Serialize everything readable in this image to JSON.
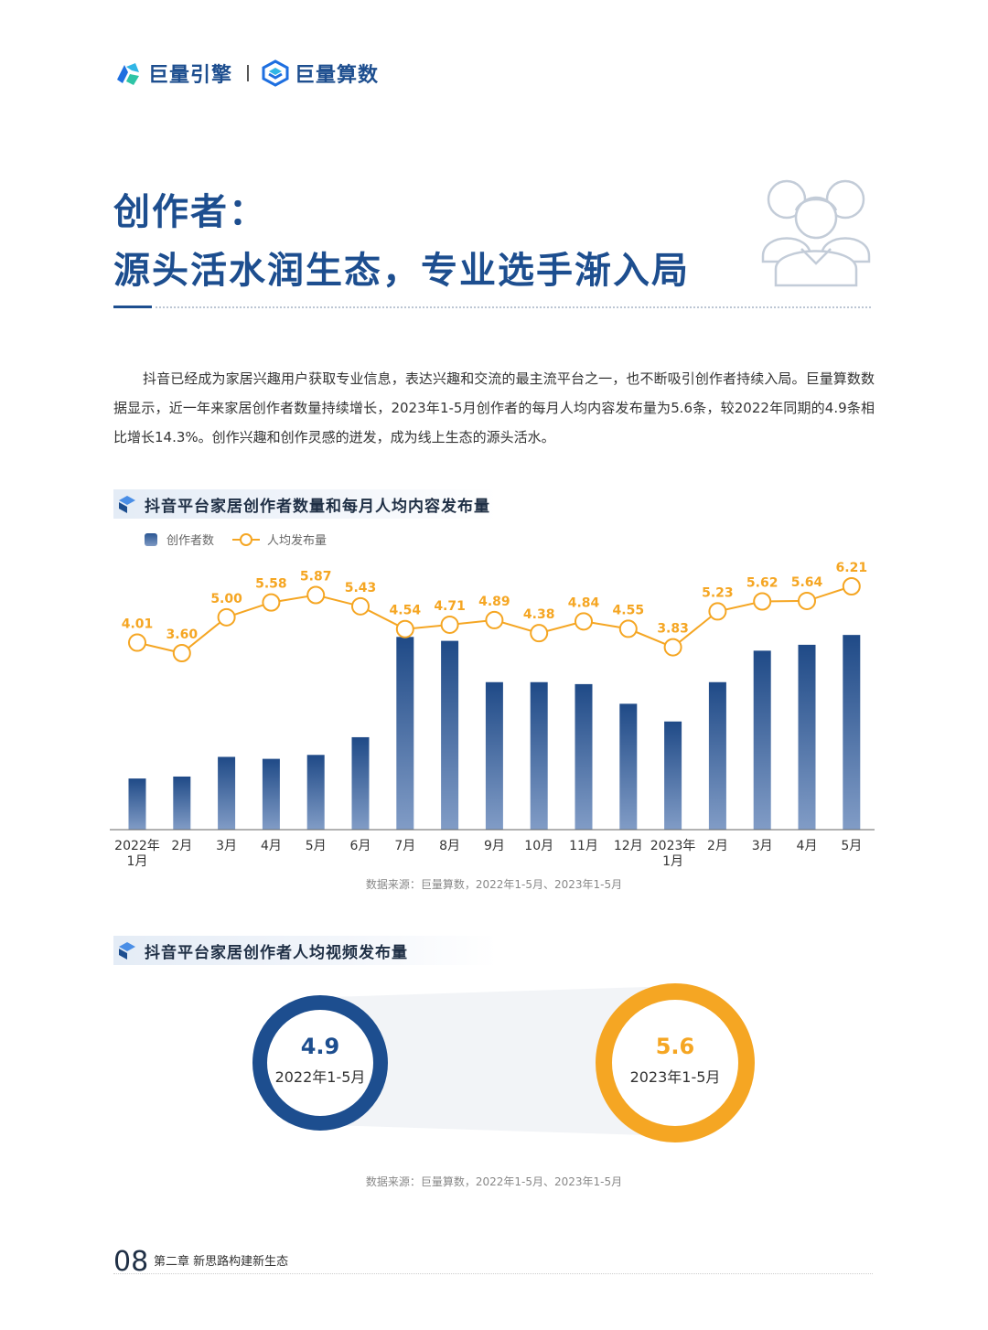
{
  "header": {
    "brand1": "巨量引擎",
    "brand2": "巨量算数"
  },
  "title": {
    "line1": "创作者：",
    "line2": "源头活水润生态，专业选手渐入局"
  },
  "intro": "抖音已经成为家居兴趣用户获取专业信息，表达兴趣和交流的最主流平台之一，也不断吸引创作者持续入局。巨量算数数据显示，近一年来家居创作者数量持续增长，2023年1-5月创作者的每月人均内容发布量为5.6条，较2022年同期的4.9条相比增长14.3%。创作兴趣和创作灵感的迸发，成为线上生态的源头活水。",
  "section1": {
    "title": "抖音平台家居创作者数量和每月人均内容发布量"
  },
  "section2": {
    "title": "抖音平台家居创作者人均视频发布量"
  },
  "chart_data": [
    {
      "type": "bar+line",
      "categories": [
        [
          "2022年",
          "1月"
        ],
        [
          "2月"
        ],
        [
          "3月"
        ],
        [
          "4月"
        ],
        [
          "5月"
        ],
        [
          "6月"
        ],
        [
          "7月"
        ],
        [
          "8月"
        ],
        [
          "9月"
        ],
        [
          "10月"
        ],
        [
          "11月"
        ],
        [
          "12月"
        ],
        [
          "2023年",
          "1月"
        ],
        [
          "2月"
        ],
        [
          "3月"
        ],
        [
          "4月"
        ],
        [
          "5月"
        ]
      ],
      "series": [
        {
          "name": "创作者数",
          "kind": "bar",
          "color": "#24508e",
          "values": [
            26,
            27,
            37,
            36,
            38,
            47,
            98,
            96,
            75,
            75,
            74,
            64,
            55,
            75,
            91,
            94,
            99
          ]
        },
        {
          "name": "人均发布量",
          "kind": "line",
          "color": "#f5a623",
          "values": [
            4.01,
            3.6,
            5.0,
            5.58,
            5.87,
            5.43,
            4.54,
            4.71,
            4.89,
            4.38,
            4.84,
            4.55,
            3.83,
            5.23,
            5.62,
            5.64,
            6.21
          ]
        }
      ],
      "bar_axis": "relative scale, no tick labels",
      "line_axis": "no tick labels",
      "grid": false,
      "legend": "top-left"
    },
    {
      "type": "ring-comparison",
      "items": [
        {
          "value": "4.9",
          "period": "2022年1-5月",
          "color": "#1d4e8f"
        },
        {
          "value": "5.6",
          "period": "2023年1-5月",
          "color": "#f5a623"
        }
      ]
    }
  ],
  "sources": {
    "chart1": "数据来源：巨量算数，2022年1-5月、2023年1-5月",
    "chart2": "数据来源：巨量算数，2022年1-5月、2023年1-5月"
  },
  "footer": {
    "page": "08",
    "chapter": "第二章  新思路构建新生态"
  }
}
